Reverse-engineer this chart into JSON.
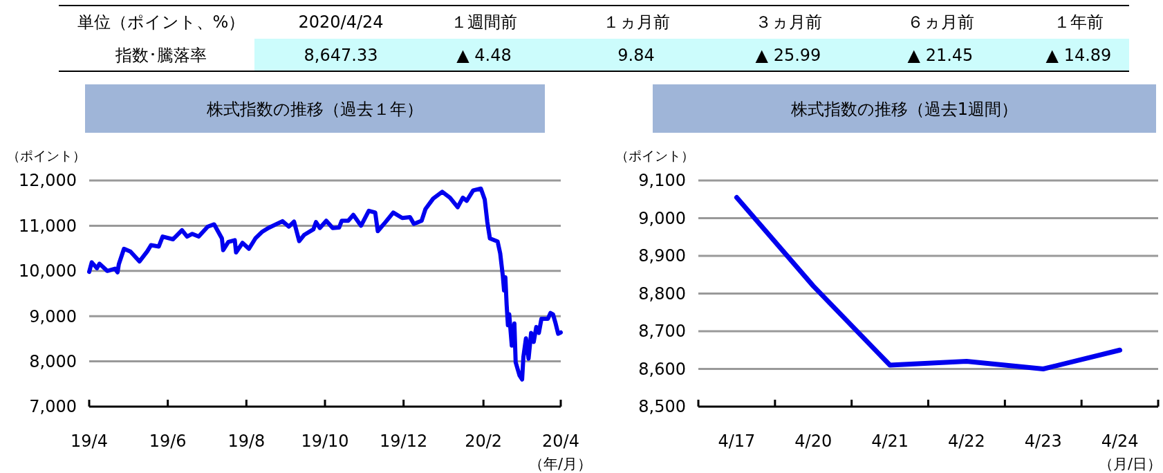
{
  "chart_data": [
    {
      "type": "other",
      "annotations": [
        "単位（ポイント、%）",
        "2020/4/24",
        "１週間前",
        "１ヵ月前",
        "３ヵ月前",
        "６ヵ月前",
        "１年前",
        "指数･騰落率",
        "8,647.33",
        "▲ 4.48",
        "9.84",
        "▲ 25.99",
        "▲ 21.45",
        "▲ 14.89"
      ]
    },
    {
      "type": "line",
      "title": "株式指数の推移（過去１年）",
      "ylabel": "（ポイント）",
      "xlabel": "（年/月）",
      "color": "#0000ee",
      "grid": "y",
      "x": [
        "2019-04-01",
        "2019-04-03",
        "2019-04-07",
        "2019-04-09",
        "2019-04-15",
        "2019-04-21",
        "2019-04-23",
        "2019-04-24",
        "2019-04-28",
        "2019-05-03",
        "2019-05-10",
        "2019-05-16",
        "2019-05-19",
        "2019-05-25",
        "2019-05-28",
        "2019-06-05",
        "2019-06-12",
        "2019-06-16",
        "2019-06-20",
        "2019-06-25",
        "2019-07-02",
        "2019-07-07",
        "2019-07-13",
        "2019-07-14",
        "2019-07-18",
        "2019-07-23",
        "2019-07-24",
        "2019-07-29",
        "2019-08-03",
        "2019-08-08",
        "2019-08-13",
        "2019-08-18",
        "2019-08-29",
        "2019-09-03",
        "2019-09-07",
        "2019-09-11",
        "2019-09-15",
        "2019-09-22",
        "2019-09-24",
        "2019-09-27",
        "2019-10-02",
        "2019-10-07",
        "2019-10-12",
        "2019-10-14",
        "2019-10-19",
        "2019-10-23",
        "2019-10-29",
        "2019-11-04",
        "2019-11-09",
        "2019-11-11",
        "2019-11-17",
        "2019-11-23",
        "2019-11-30",
        "2019-12-06",
        "2019-12-09",
        "2019-12-15",
        "2019-12-18",
        "2019-12-24",
        "2019-12-31",
        "2020-01-06",
        "2020-01-12",
        "2020-01-16",
        "2020-01-19",
        "2020-01-24",
        "2020-01-30",
        "2020-02-02",
        "2020-02-04",
        "2020-02-06",
        "2020-02-12",
        "2020-02-14",
        "2020-02-16",
        "2020-02-17",
        "2020-02-18",
        "2020-02-19",
        "2020-02-20",
        "2020-02-21",
        "2020-02-23",
        "2020-02-25",
        "2020-02-26",
        "2020-02-29",
        "2020-03-02",
        "2020-03-03",
        "2020-03-05",
        "2020-03-07",
        "2020-03-09",
        "2020-03-11",
        "2020-03-13",
        "2020-03-15",
        "2020-03-17",
        "2020-03-22",
        "2020-03-24",
        "2020-03-26",
        "2020-03-28",
        "2020-03-30",
        "2020-04-01"
      ],
      "values": [
        9980,
        10190,
        10060,
        10160,
        10000,
        10050,
        9970,
        10150,
        10490,
        10430,
        10210,
        10430,
        10570,
        10540,
        10760,
        10700,
        10900,
        10760,
        10820,
        10760,
        10980,
        11030,
        10720,
        10460,
        10640,
        10680,
        10410,
        10620,
        10490,
        10720,
        10860,
        10950,
        11100,
        10980,
        11090,
        10660,
        10800,
        10920,
        11080,
        10950,
        11110,
        10950,
        10960,
        11110,
        11110,
        11240,
        11000,
        11330,
        11290,
        10880,
        11080,
        11290,
        11170,
        11190,
        11040,
        11110,
        11370,
        11600,
        11750,
        11620,
        11410,
        11620,
        11550,
        11780,
        11820,
        11580,
        11080,
        10720,
        10650,
        10390,
        9900,
        9570,
        9860,
        9250,
        8800,
        9040,
        8350,
        8840,
        7980,
        7690,
        7600,
        8100,
        8510,
        8060,
        8630,
        8430,
        8760,
        8630,
        8940,
        8940,
        9070,
        9040,
        8840,
        8610,
        8640
      ],
      "xlim": [
        "2019-04-01",
        "2020-04-01"
      ],
      "xticks": [
        {
          "value": "2019-04-01",
          "label": "19/4"
        },
        {
          "value": "2019-06-01",
          "label": "19/6"
        },
        {
          "value": "2019-08-01",
          "label": "19/8"
        },
        {
          "value": "2019-10-01",
          "label": "19/10"
        },
        {
          "value": "2019-12-01",
          "label": "19/12"
        },
        {
          "value": "2020-02-01",
          "label": "20/2"
        },
        {
          "value": "2020-04-01",
          "label": "20/4"
        }
      ],
      "ylim": [
        7000,
        12000
      ],
      "yticks": [
        {
          "value": 7000,
          "label": "7,000"
        },
        {
          "value": 8000,
          "label": "8,000"
        },
        {
          "value": 9000,
          "label": "9,000"
        },
        {
          "value": 10000,
          "label": "10,000"
        },
        {
          "value": 11000,
          "label": "11,000"
        },
        {
          "value": 12000,
          "label": "12,000"
        }
      ]
    },
    {
      "type": "line",
      "title": "株式指数の推移（過去1週間）",
      "ylabel": "（ポイント）",
      "xlabel": "（月/日）",
      "color": "#0000ee",
      "grid": "y",
      "categories": [
        "4/17",
        "4/20",
        "4/21",
        "4/22",
        "4/23",
        "4/24"
      ],
      "values": [
        9055,
        8820,
        8610,
        8620,
        8600,
        8650
      ],
      "ylim": [
        8500,
        9100
      ],
      "yticks": [
        {
          "value": 8500,
          "label": "8,500"
        },
        {
          "value": 8600,
          "label": "8,600"
        },
        {
          "value": 8700,
          "label": "8,700"
        },
        {
          "value": 8800,
          "label": "8,800"
        },
        {
          "value": 8900,
          "label": "8,900"
        },
        {
          "value": 9000,
          "label": "9,000"
        },
        {
          "value": 9100,
          "label": "9,100"
        }
      ]
    }
  ]
}
